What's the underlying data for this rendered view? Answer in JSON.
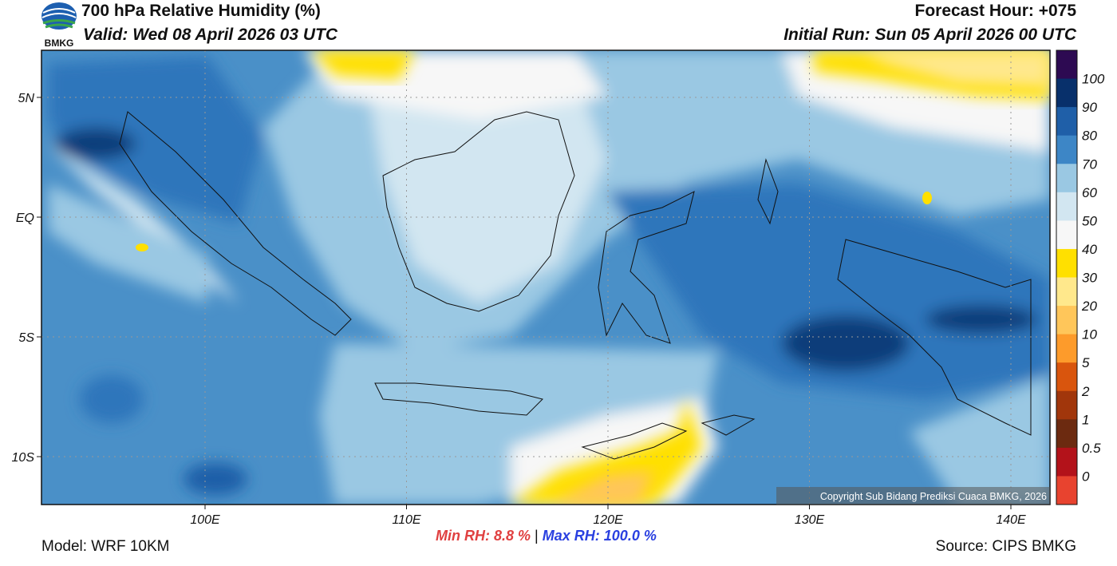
{
  "header": {
    "title": "700 hPa Relative Humidity (%)",
    "valid": "Valid: Wed 08 April 2026 03 UTC",
    "forecast_hour": "Forecast Hour: +075",
    "initial_run": "Initial Run: Sun 05 April 2026 00 UTC",
    "logo_text": "BMKG"
  },
  "map": {
    "lat_labels": [
      "5N",
      "EQ",
      "5S",
      "10S"
    ],
    "lon_labels": [
      "100E",
      "110E",
      "120E",
      "130E",
      "140E"
    ],
    "copyright": "Copyright Sub Bidang Prediksi Cuaca BMKG, 2026"
  },
  "colorbar": {
    "labels": [
      "100",
      "90",
      "80",
      "70",
      "60",
      "50",
      "40",
      "30",
      "20",
      "10",
      "5",
      "2",
      "1",
      "0.5",
      "0"
    ],
    "colors": [
      "#2d0a52",
      "#08306b",
      "#1f5fa8",
      "#3d86c6",
      "#9ac8e3",
      "#d2e6f1",
      "#f7f7f7",
      "#ffe000",
      "#ffe88c",
      "#ffc65a",
      "#fd9b2b",
      "#d9550d",
      "#a1360b",
      "#6c2a10",
      "#b3121a",
      "#e8432f"
    ]
  },
  "footer": {
    "model": "Model: WRF 10KM",
    "min_rh_label": "Min RH:",
    "min_rh_value": "8.8 %",
    "separator": "|",
    "max_rh_label": "Max RH:",
    "max_rh_value": "100.0 %",
    "source": "Source: CIPS BMKG"
  }
}
